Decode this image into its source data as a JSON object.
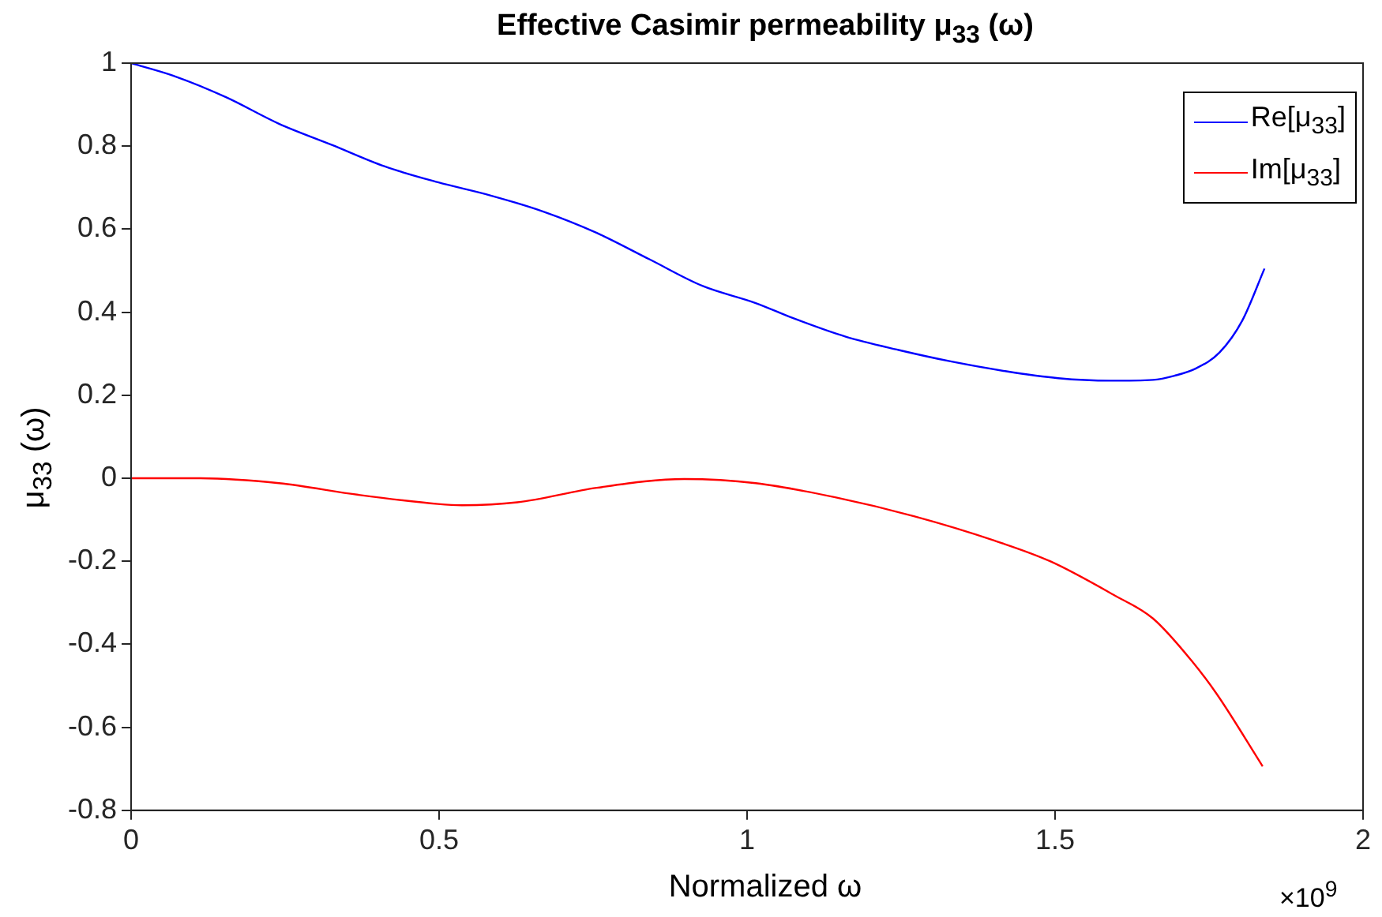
{
  "chart_data": {
    "type": "line",
    "title": "Effective Casimir permeability μ$_{33}$ (ω)",
    "xlabel": "Normalized ω",
    "ylabel": "μ$_{33}$ (ω)",
    "annotations": [
      "×10$^{9}$"
    ],
    "xlim": [
      0,
      2
    ],
    "xticks": [
      0,
      0.5,
      1,
      1.5,
      2
    ],
    "ylim": [
      -0.8,
      1
    ],
    "yticks": [
      -0.8,
      -0.6,
      -0.4,
      -0.2,
      0,
      0.2,
      0.4,
      0.6,
      0.8,
      1
    ],
    "grid": false,
    "legend": "top right",
    "marker": "none",
    "line_style": "solid",
    "series": [
      {
        "name": "Re[μ$_{33}$]",
        "color": "#0000ff",
        "x": [
          0,
          0.068,
          0.154,
          0.24,
          0.326,
          0.412,
          0.498,
          0.584,
          0.67,
          0.756,
          0.842,
          0.928,
          1.014,
          1.074,
          1.16,
          1.246,
          1.332,
          1.419,
          1.505,
          1.59,
          1.659,
          1.694,
          1.728,
          1.767,
          1.804,
          1.84
        ],
        "values": [
          1.0,
          0.97,
          0.918,
          0.854,
          0.803,
          0.751,
          0.713,
          0.681,
          0.642,
          0.591,
          0.527,
          0.463,
          0.422,
          0.386,
          0.341,
          0.309,
          0.281,
          0.258,
          0.241,
          0.235,
          0.237,
          0.247,
          0.264,
          0.303,
          0.38,
          0.505
        ]
      },
      {
        "name": "Im[μ$_{33}$]",
        "color": "#ff0000",
        "x": [
          0,
          0.111,
          0.24,
          0.369,
          0.498,
          0.537,
          0.627,
          0.756,
          0.898,
          1.014,
          1.143,
          1.272,
          1.401,
          1.492,
          1.595,
          1.659,
          1.724,
          1.763,
          1.837
        ],
        "values": [
          0,
          0,
          -0.012,
          -0.04,
          -0.062,
          -0.065,
          -0.058,
          -0.023,
          -0.002,
          -0.012,
          -0.046,
          -0.092,
          -0.15,
          -0.2,
          -0.281,
          -0.338,
          -0.444,
          -0.521,
          -0.694
        ]
      }
    ]
  }
}
